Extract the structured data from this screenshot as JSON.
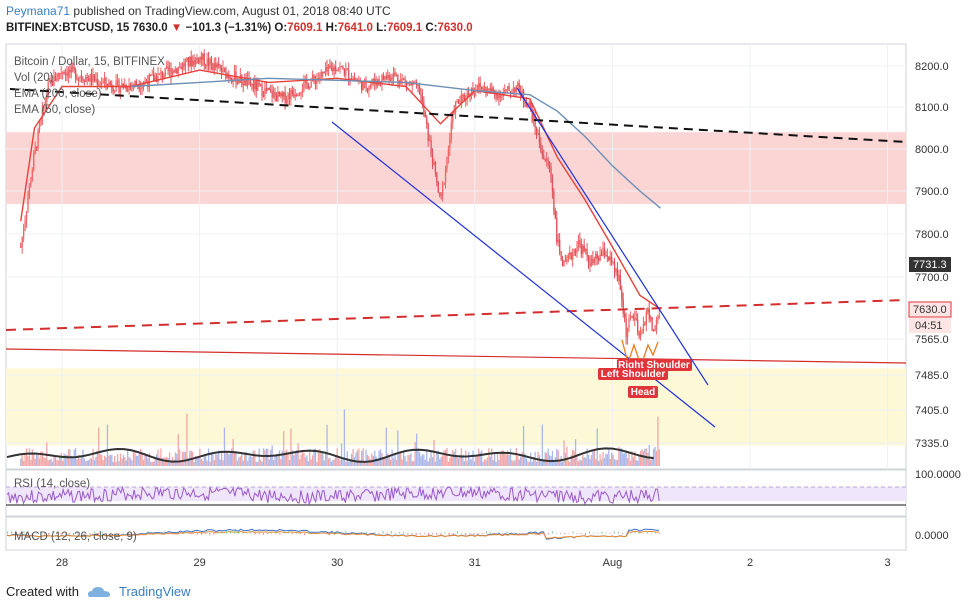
{
  "header": {
    "author": "Peymana71",
    "published_text": "published on TradingView.com, August 01, 2018 08:40 UTC",
    "symbol": "BITFINEX:BTCUSD, 15",
    "last": "7630.0",
    "change_arrow": "▼",
    "change": "−101.3 (−1.31%)",
    "o_label": "O:",
    "o_value": "7609.1",
    "h_label": "H:",
    "h_value": "7641.0",
    "l_label": "L:",
    "l_value": "7609.1",
    "c_label": "C:",
    "c_value": "7630.0"
  },
  "legend": {
    "title": "Bitcoin / Dollar, 15, BITFINEX",
    "vol": "Vol (20)",
    "ema200": "EMA (200, close)",
    "ema50": "EMA (50, close)"
  },
  "panes": {
    "rsi": "RSI (14, close)",
    "macd": "MACD (12, 26, close, 9)"
  },
  "annotations": {
    "right_shoulder": "Right Shoulder",
    "left_shoulder": "Left Shoulder",
    "head": "Head"
  },
  "price_badges": {
    "level": "7731.3",
    "last": "7630.0",
    "countdown": "04:51"
  },
  "rsi_axis": {
    "top": "100.0000"
  },
  "macd_axis": {
    "zero": "0.0000"
  },
  "footer": {
    "created_with": "Created with",
    "brand": "TradingView"
  },
  "colors": {
    "up": "#f06464",
    "down": "#e0505a",
    "ema50": "#e8413a",
    "ema200": "#6b8fb5",
    "trend": "#1f2fdb",
    "accent_red": "#d42d2d",
    "zone_pink": "#fbd4d4",
    "zone_yellow": "#fdf8d6"
  },
  "chart_data": {
    "type": "line",
    "title": "Bitcoin / Dollar, 15, BITFINEX",
    "x_ticks": [
      "28",
      "29",
      "30",
      "31",
      "Aug",
      "2",
      "3"
    ],
    "y_ticks": [
      8200,
      8100,
      8000,
      7900,
      7800,
      7700,
      7565,
      7485,
      7405,
      7335
    ],
    "ylim": [
      7290,
      8260
    ],
    "price_series": [
      {
        "day": 27.7,
        "price": 7770
      },
      {
        "day": 27.8,
        "price": 7990
      },
      {
        "day": 27.9,
        "price": 8150
      },
      {
        "day": 28.0,
        "price": 8190
      },
      {
        "day": 28.2,
        "price": 8170
      },
      {
        "day": 28.4,
        "price": 8150
      },
      {
        "day": 28.6,
        "price": 8160
      },
      {
        "day": 28.8,
        "price": 8190
      },
      {
        "day": 29.0,
        "price": 8220
      },
      {
        "day": 29.2,
        "price": 8180
      },
      {
        "day": 29.4,
        "price": 8150
      },
      {
        "day": 29.6,
        "price": 8120
      },
      {
        "day": 29.8,
        "price": 8160
      },
      {
        "day": 30.0,
        "price": 8200
      },
      {
        "day": 30.2,
        "price": 8150
      },
      {
        "day": 30.4,
        "price": 8180
      },
      {
        "day": 30.6,
        "price": 8140
      },
      {
        "day": 30.75,
        "price": 7870
      },
      {
        "day": 30.85,
        "price": 8100
      },
      {
        "day": 31.0,
        "price": 8150
      },
      {
        "day": 31.1,
        "price": 8140
      },
      {
        "day": 31.2,
        "price": 8130
      },
      {
        "day": 31.3,
        "price": 8150
      },
      {
        "day": 31.4,
        "price": 8100
      },
      {
        "day": 31.5,
        "price": 7980
      },
      {
        "day": 31.55,
        "price": 7950
      },
      {
        "day": 31.6,
        "price": 7780
      },
      {
        "day": 31.65,
        "price": 7720
      },
      {
        "day": 31.75,
        "price": 7780
      },
      {
        "day": 31.85,
        "price": 7730
      },
      {
        "day": 31.95,
        "price": 7760
      },
      {
        "day": 32.05,
        "price": 7690
      },
      {
        "day": 32.1,
        "price": 7580
      },
      {
        "day": 32.15,
        "price": 7620
      },
      {
        "day": 32.2,
        "price": 7560
      },
      {
        "day": 32.25,
        "price": 7630
      },
      {
        "day": 32.3,
        "price": 7580
      },
      {
        "day": 32.35,
        "price": 7630
      }
    ],
    "series": [
      {
        "name": "EMA (50, close)",
        "points": [
          {
            "day": 27.7,
            "price": 7830
          },
          {
            "day": 27.8,
            "price": 8050
          },
          {
            "day": 28.0,
            "price": 8150
          },
          {
            "day": 28.5,
            "price": 8150
          },
          {
            "day": 29.0,
            "price": 8190
          },
          {
            "day": 29.5,
            "price": 8160
          },
          {
            "day": 30.0,
            "price": 8170
          },
          {
            "day": 30.5,
            "price": 8150
          },
          {
            "day": 30.75,
            "price": 8060
          },
          {
            "day": 31.0,
            "price": 8140
          },
          {
            "day": 31.4,
            "price": 8120
          },
          {
            "day": 31.6,
            "price": 7980
          },
          {
            "day": 31.8,
            "price": 7880
          },
          {
            "day": 32.0,
            "price": 7770
          },
          {
            "day": 32.2,
            "price": 7660
          },
          {
            "day": 32.35,
            "price": 7630
          }
        ]
      },
      {
        "name": "EMA (200, close)",
        "points": [
          {
            "day": 28.5,
            "price": 8150
          },
          {
            "day": 29.0,
            "price": 8160
          },
          {
            "day": 29.5,
            "price": 8170
          },
          {
            "day": 30.0,
            "price": 8165
          },
          {
            "day": 30.5,
            "price": 8160
          },
          {
            "day": 31.0,
            "price": 8140
          },
          {
            "day": 31.4,
            "price": 8130
          },
          {
            "day": 31.6,
            "price": 8090
          },
          {
            "day": 31.8,
            "price": 8030
          },
          {
            "day": 32.0,
            "price": 7960
          },
          {
            "day": 32.2,
            "price": 7900
          },
          {
            "day": 32.35,
            "price": 7860
          }
        ]
      }
    ],
    "zones": [
      {
        "from": 7870,
        "to": 8040,
        "color": "#fbd4d4"
      },
      {
        "from": 7330,
        "to": 7500,
        "color": "#fdf8d6"
      }
    ],
    "ylabel": "",
    "xlabel": "",
    "grid": true
  }
}
